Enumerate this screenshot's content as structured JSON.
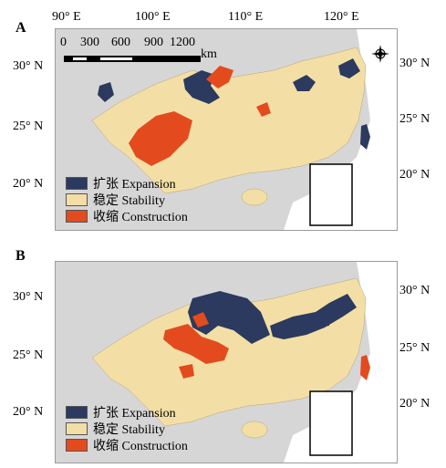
{
  "colors": {
    "expansion": "#2b3a5e",
    "stability": "#f3dfa5",
    "construction": "#e34b1f",
    "background_land": "#d6d6d6",
    "border": "#9c9c9c"
  },
  "panels": [
    {
      "letter": "A",
      "lon_ticks": [
        "90° E",
        "100° E",
        "110° E",
        "120° E"
      ],
      "lat_ticks_left": [
        "30° N",
        "25° N",
        "20° N"
      ],
      "lat_ticks_right": [
        "30° N",
        "25° N",
        "20° N"
      ],
      "scale": {
        "labels": [
          "0",
          "300",
          "600",
          "900",
          "1200"
        ],
        "unit": "km"
      },
      "legend": [
        {
          "key": "expansion",
          "label": "扩张 Expansion"
        },
        {
          "key": "stability",
          "label": "稳定 Stability"
        },
        {
          "key": "construction",
          "label": "收缩 Construction"
        }
      ]
    },
    {
      "letter": "B",
      "lat_ticks_left": [
        "30° N",
        "25° N",
        "20° N"
      ],
      "lat_ticks_right": [
        "30° N",
        "25° N",
        "20° N"
      ],
      "legend": [
        {
          "key": "expansion",
          "label": "扩张 Expansion"
        },
        {
          "key": "stability",
          "label": "稳定 Stability"
        },
        {
          "key": "construction",
          "label": "收缩 Construction"
        }
      ]
    }
  ]
}
